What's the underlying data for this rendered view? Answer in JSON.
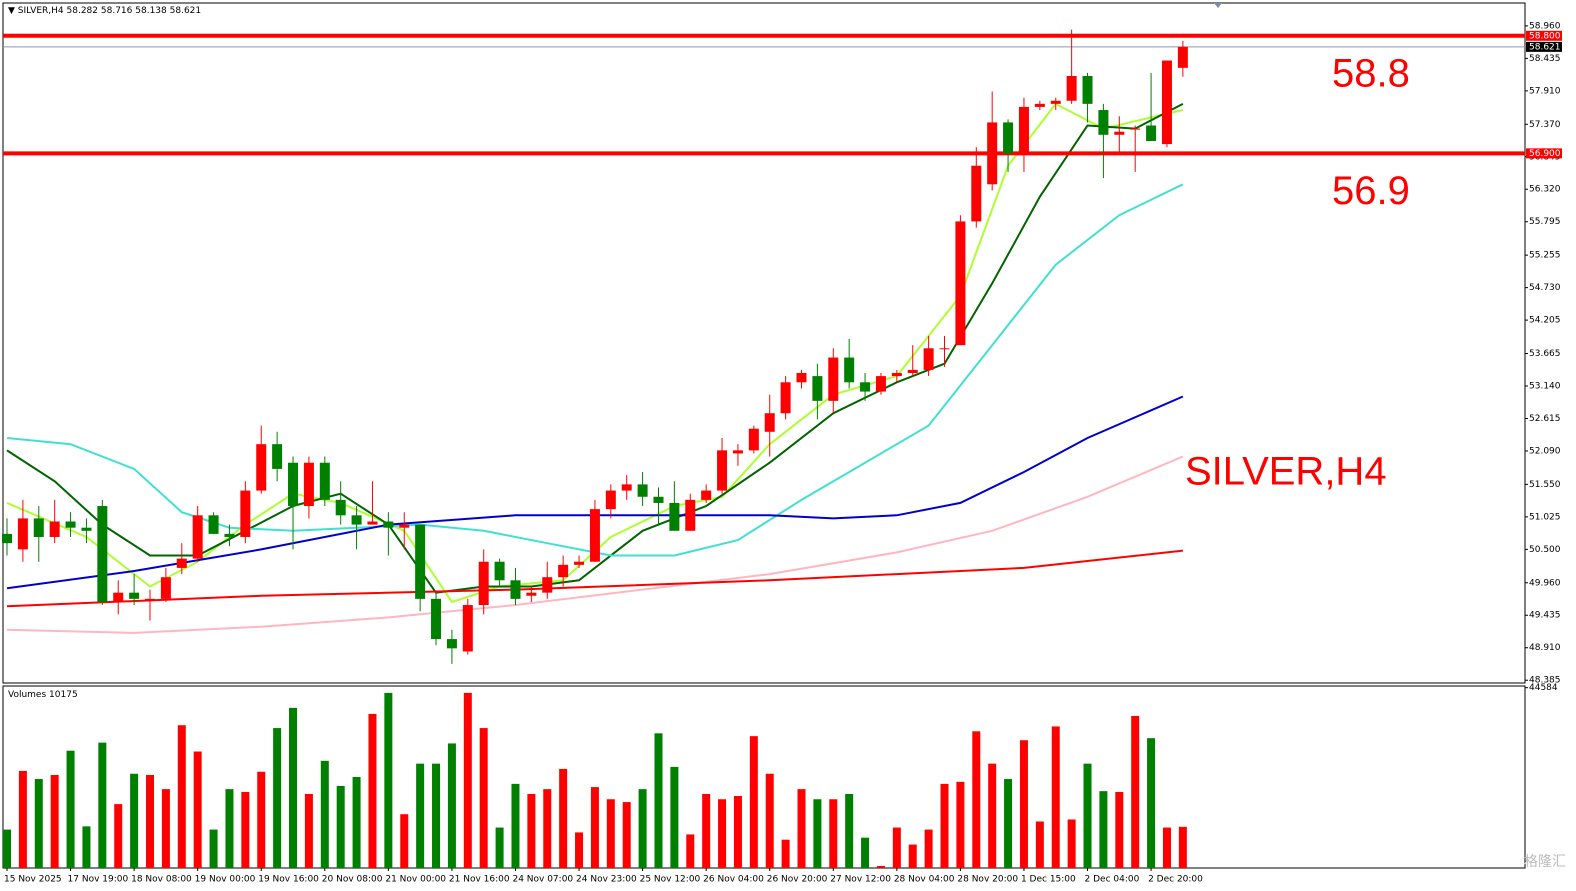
{
  "chart_data": {
    "type": "candlestick",
    "title": "SILVER,H4",
    "candles": {
      "open": [
        50.75,
        50.5,
        51.0,
        50.7,
        50.95,
        50.85,
        51.2,
        49.65,
        49.8,
        49.7,
        49.7,
        50.2,
        50.35,
        51.05,
        50.75,
        50.7,
        51.45,
        52.2,
        51.9,
        51.2,
        51.9,
        51.3,
        51.05,
        50.9,
        50.95,
        50.85,
        50.9,
        49.7,
        49.05,
        48.85,
        49.6,
        50.3,
        50.0,
        49.75,
        49.8,
        50.05,
        50.25,
        50.3,
        51.15,
        51.45,
        51.55,
        51.35,
        51.25,
        50.8,
        51.3,
        51.45,
        52.05,
        52.1,
        52.4,
        52.7,
        53.2,
        53.3,
        52.9,
        53.6,
        53.2,
        53.05,
        53.3,
        53.35,
        53.4,
        53.75,
        53.8,
        55.8,
        56.4,
        57.4,
        56.9,
        57.65,
        57.7,
        57.75,
        58.15,
        57.6,
        57.2,
        57.3,
        57.35,
        57.05,
        58.282
      ],
      "high": [
        51.0,
        51.3,
        51.2,
        51.3,
        51.1,
        51.0,
        51.3,
        50.0,
        50.1,
        49.85,
        50.2,
        50.6,
        51.2,
        51.1,
        50.9,
        51.6,
        52.5,
        52.4,
        52.0,
        52.0,
        52.0,
        51.6,
        51.2,
        51.6,
        51.1,
        51.1,
        50.9,
        49.8,
        49.2,
        49.7,
        50.5,
        50.35,
        50.2,
        49.9,
        50.3,
        50.4,
        50.4,
        51.3,
        51.55,
        51.7,
        51.75,
        51.5,
        51.6,
        51.4,
        51.55,
        52.3,
        52.2,
        52.5,
        53.0,
        53.3,
        53.4,
        53.5,
        53.75,
        53.9,
        53.35,
        53.35,
        53.4,
        53.8,
        53.95,
        53.95,
        55.9,
        57.0,
        57.9,
        57.45,
        57.8,
        57.75,
        57.8,
        58.9,
        58.2,
        57.7,
        57.5,
        57.35,
        58.2,
        58.4,
        58.716
      ],
      "low": [
        50.4,
        50.3,
        50.3,
        50.6,
        50.7,
        50.6,
        49.6,
        49.45,
        49.6,
        49.35,
        49.65,
        50.1,
        50.3,
        50.75,
        50.55,
        50.6,
        51.4,
        51.6,
        50.5,
        51.0,
        51.2,
        50.9,
        50.5,
        50.9,
        50.4,
        50.5,
        49.5,
        48.95,
        48.65,
        48.8,
        49.45,
        49.9,
        49.6,
        49.65,
        49.7,
        49.9,
        50.2,
        50.3,
        51.0,
        51.3,
        51.2,
        50.9,
        50.8,
        50.8,
        51.25,
        51.4,
        51.85,
        52.05,
        52.0,
        52.6,
        53.1,
        52.6,
        52.7,
        53.1,
        52.9,
        53.0,
        53.2,
        53.3,
        53.3,
        53.45,
        53.8,
        55.7,
        56.3,
        56.6,
        56.6,
        57.6,
        57.6,
        57.7,
        57.4,
        56.5,
        56.9,
        56.6,
        57.1,
        57.0,
        58.138
      ],
      "close": [
        50.6,
        51.0,
        50.7,
        50.95,
        50.85,
        50.8,
        49.65,
        49.8,
        49.7,
        49.7,
        50.05,
        50.35,
        51.05,
        50.75,
        50.7,
        51.45,
        52.2,
        51.8,
        51.2,
        51.9,
        51.3,
        51.05,
        50.9,
        50.95,
        50.85,
        50.9,
        49.7,
        49.05,
        48.9,
        49.6,
        50.3,
        50.0,
        49.7,
        49.8,
        50.05,
        50.25,
        50.3,
        51.15,
        51.45,
        51.55,
        51.35,
        51.25,
        50.8,
        51.3,
        51.45,
        52.1,
        52.1,
        52.45,
        52.7,
        53.2,
        53.35,
        52.9,
        53.6,
        53.2,
        53.05,
        53.3,
        53.35,
        53.4,
        53.75,
        53.75,
        55.8,
        56.7,
        57.4,
        56.9,
        57.65,
        57.7,
        57.75,
        58.15,
        57.7,
        57.2,
        57.25,
        57.3,
        57.1,
        58.4,
        58.621
      ],
      "up_color": "#ff0000",
      "down_color": "#008000"
    },
    "series": [
      {
        "color": "#adff2f",
        "x": [
          0,
          5,
          9,
          12,
          15,
          18,
          21,
          25,
          28,
          31,
          35,
          38,
          42,
          45,
          48,
          52,
          56,
          60,
          63,
          66,
          69,
          74
        ],
        "values": [
          51.25,
          50.7,
          49.9,
          50.3,
          50.9,
          51.4,
          51.25,
          50.8,
          49.65,
          49.9,
          50.0,
          50.7,
          51.2,
          51.35,
          52.2,
          53.0,
          53.3,
          54.6,
          56.7,
          57.7,
          57.3,
          57.6
        ]
      },
      {
        "color": "#006400",
        "x": [
          0,
          3,
          6,
          9,
          12,
          15,
          18,
          21,
          24,
          27,
          30,
          33,
          36,
          40,
          44,
          48,
          52,
          56,
          59,
          62,
          65,
          68,
          71,
          74
        ],
        "values": [
          52.1,
          51.6,
          50.9,
          50.4,
          50.4,
          50.8,
          51.2,
          51.4,
          50.9,
          49.8,
          49.9,
          49.9,
          50.0,
          50.8,
          51.2,
          51.9,
          52.7,
          53.2,
          53.5,
          54.8,
          56.2,
          57.35,
          57.3,
          57.7
        ]
      },
      {
        "color": "#40e0d0",
        "x": [
          0,
          4,
          8,
          11,
          14,
          18,
          22,
          26,
          30,
          34,
          38,
          42,
          46,
          50,
          54,
          58,
          62,
          66,
          70,
          74
        ],
        "values": [
          52.3,
          52.2,
          51.8,
          51.1,
          50.85,
          50.8,
          50.85,
          50.9,
          50.8,
          50.6,
          50.4,
          50.4,
          50.65,
          51.3,
          51.9,
          52.5,
          53.8,
          55.1,
          55.9,
          56.4
        ]
      },
      {
        "color": "#0000cd",
        "x": [
          0,
          8,
          16,
          24,
          32,
          40,
          48,
          52,
          56,
          60,
          64,
          68,
          74
        ],
        "values": [
          49.87,
          50.15,
          50.5,
          50.9,
          51.05,
          51.05,
          51.05,
          51.0,
          51.05,
          51.25,
          51.75,
          52.3,
          52.97
        ]
      },
      {
        "color": "#ffb6c1",
        "x": [
          0,
          8,
          16,
          24,
          32,
          40,
          48,
          56,
          62,
          68,
          74
        ],
        "values": [
          49.2,
          49.15,
          49.25,
          49.4,
          49.6,
          49.85,
          50.1,
          50.45,
          50.8,
          51.35,
          52.0
        ]
      },
      {
        "color": "#ff0000",
        "x": [
          0,
          16,
          32,
          48,
          64,
          74
        ],
        "values": [
          49.58,
          49.75,
          49.85,
          50.0,
          50.2,
          50.48
        ]
      }
    ],
    "ylim": [
      48.34,
      59.33
    ],
    "yticks": [
      {
        "value": 58.96,
        "label": "58.960"
      },
      {
        "value": 58.435,
        "label": "58.435"
      },
      {
        "value": 57.91,
        "label": "57.910"
      },
      {
        "value": 57.37,
        "label": "57.370"
      },
      {
        "value": 56.845,
        "label": "56.845"
      },
      {
        "value": 56.32,
        "label": "56.320"
      },
      {
        "value": 55.795,
        "label": "55.795"
      },
      {
        "value": 55.255,
        "label": "55.255"
      },
      {
        "value": 54.73,
        "label": "54.730"
      },
      {
        "value": 54.205,
        "label": "54.205"
      },
      {
        "value": 53.665,
        "label": "53.665"
      },
      {
        "value": 53.14,
        "label": "53.140"
      },
      {
        "value": 52.615,
        "label": "52.615"
      },
      {
        "value": 52.09,
        "label": "52.090"
      },
      {
        "value": 51.55,
        "label": "51.550"
      },
      {
        "value": 51.025,
        "label": "51.025"
      },
      {
        "value": 50.5,
        "label": "50.500"
      },
      {
        "value": 49.96,
        "label": "49.960"
      },
      {
        "value": 49.435,
        "label": "49.435"
      },
      {
        "value": 48.91,
        "label": "48.910"
      },
      {
        "value": 48.385,
        "label": "48.385"
      }
    ],
    "grid": false,
    "levels": [
      {
        "value": 58.8,
        "label": "58.800",
        "note": "58.8",
        "color": "#ff0000"
      },
      {
        "value": 56.9,
        "label": "56.900",
        "note": "56.9",
        "color": "#ff0000"
      }
    ],
    "price_line": 58.621,
    "annotation": "SILVER,H4",
    "categories": [
      "15 Nov 2025",
      "17 Nov 19:00",
      "18 Nov 08:00",
      "19 Nov 00:00",
      "19 Nov 16:00",
      "20 Nov 08:00",
      "21 Nov 00:00",
      "21 Nov 16:00",
      "24 Nov 07:00",
      "24 Nov 23:00",
      "25 Nov 12:00",
      "26 Nov 04:00",
      "26 Nov 20:00",
      "27 Nov 12:00",
      "28 Nov 04:00",
      "28 Nov 20:00",
      "1 Dec 15:00",
      "2 Dec 04:00",
      "2 Dec 20:00"
    ],
    "volume_title": "Volumes",
    "volumes": [
      9500,
      24000,
      22000,
      23000,
      29000,
      10300,
      31000,
      15800,
      23300,
      23000,
      19500,
      35300,
      28800,
      9500,
      19500,
      18800,
      23800,
      34600,
      39600,
      18300,
      26500,
      20300,
      22500,
      38100,
      43300,
      13300,
      25800,
      25800,
      30800,
      43300,
      34600,
      10000,
      20800,
      18300,
      19500,
      24500,
      8800,
      20000,
      17000,
      16300,
      19500,
      33300,
      25000,
      8300,
      18300,
      17000,
      17800,
      32600,
      23300,
      7000,
      19500,
      17000,
      17000,
      18300,
      7500,
      500,
      10000,
      5800,
      9500,
      20800,
      21300,
      33800,
      25800,
      22000,
      31600,
      11500,
      35000,
      12000,
      25800,
      19000,
      18800,
      37600,
      32100,
      10000,
      10175
    ],
    "vol_ylim": [
      0,
      45000
    ],
    "vol_yticks": [
      44584
    ],
    "watermark": "格隆汇"
  }
}
